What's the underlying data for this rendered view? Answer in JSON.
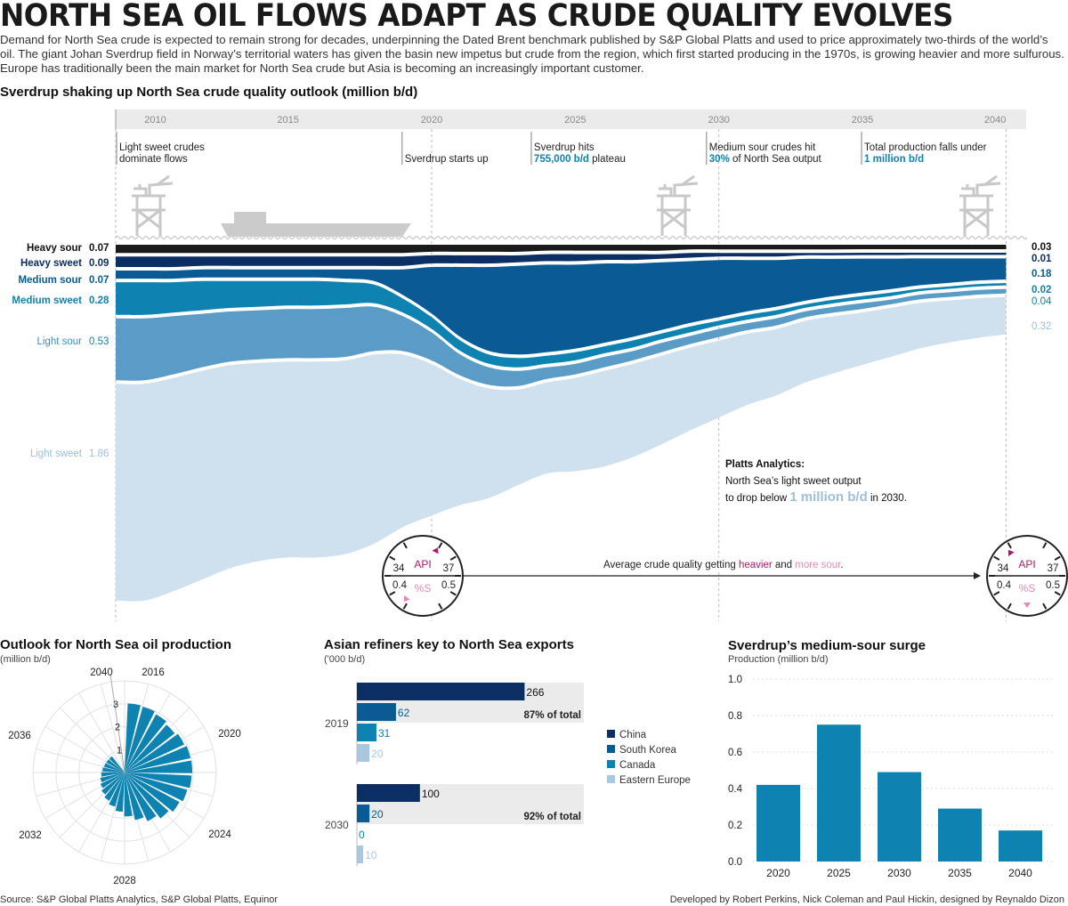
{
  "title": "NORTH SEA OIL FLOWS ADAPT AS CRUDE QUALITY EVOLVES",
  "intro": "Demand for North Sea crude is expected to remain strong for decades, underpinning the Dated Brent benchmark published by S&P Global Platts and used to price approximately two-thirds of the world’s oil. The giant Johan Sverdrup field in Norway’s territorial waters has given the basin new impetus but crude from the region, which first started producing in the 1970s, is growing heavier and more sulfurous. Europe has traditionally been the main market for North Sea crude but Asia is becoming an increasingly important customer.",
  "colors": {
    "heavy_sour": "#1a1a1a",
    "heavy_sweet": "#0b2f62",
    "medium_sour": "#0a5a94",
    "medium_sweet": "#0e82b0",
    "light_sour": "#5a9cc6",
    "light_sweet": "#cfe0ee",
    "accent_magenta": "#b0166e",
    "accent_pink": "#e58ab4",
    "highlight_blue": "#0e82b0",
    "label_light": "#9dbfd8"
  },
  "chart_data": [
    {
      "id": "sverdrup_flows",
      "type": "area",
      "title": "Sverdrup shaking up North Sea crude quality outlook (million b/d)",
      "x": [
        2009,
        2010,
        2011,
        2012,
        2013,
        2014,
        2015,
        2016,
        2017,
        2018,
        2019,
        2020,
        2021,
        2022,
        2023,
        2024,
        2025,
        2026,
        2027,
        2028,
        2029,
        2030,
        2031,
        2032,
        2033,
        2034,
        2035,
        2036,
        2037,
        2038,
        2039,
        2040
      ],
      "axis_ticks": [
        "2010",
        "2015",
        "2020",
        "2025",
        "2030",
        "2035",
        "2040"
      ],
      "xlim": [
        2009,
        2040.7
      ],
      "series": [
        {
          "name": "Light sweet",
          "key": "light_sweet",
          "start_label": "1.86",
          "end_label": "0.32",
          "values": [
            1.86,
            1.86,
            1.83,
            1.79,
            1.74,
            1.7,
            1.68,
            1.68,
            1.66,
            1.62,
            1.48,
            1.3,
            1.08,
            0.94,
            0.82,
            0.78,
            0.8,
            0.82,
            0.8,
            0.76,
            0.71,
            0.66,
            0.61,
            0.57,
            0.53,
            0.49,
            0.45,
            0.42,
            0.39,
            0.36,
            0.34,
            0.32
          ]
        },
        {
          "name": "Light sour",
          "key": "light_sour",
          "start_label": "0.53",
          "end_label": "0.04",
          "values": [
            0.53,
            0.53,
            0.5,
            0.46,
            0.43,
            0.42,
            0.42,
            0.42,
            0.42,
            0.38,
            0.3,
            0.24,
            0.18,
            0.15,
            0.13,
            0.1,
            0.09,
            0.09,
            0.08,
            0.08,
            0.07,
            0.07,
            0.06,
            0.06,
            0.05,
            0.05,
            0.05,
            0.04,
            0.04,
            0.04,
            0.04,
            0.04
          ]
        },
        {
          "name": "Medium sweet",
          "key": "medium_sweet",
          "start_label": "0.28",
          "end_label": "0.02",
          "values": [
            0.28,
            0.28,
            0.26,
            0.25,
            0.23,
            0.22,
            0.21,
            0.21,
            0.19,
            0.16,
            0.12,
            0.1,
            0.09,
            0.08,
            0.08,
            0.07,
            0.07,
            0.06,
            0.06,
            0.05,
            0.05,
            0.04,
            0.04,
            0.04,
            0.03,
            0.03,
            0.03,
            0.03,
            0.02,
            0.02,
            0.02,
            0.02
          ]
        },
        {
          "name": "Medium sour",
          "key": "medium_sour",
          "start_label": "0.07",
          "end_label": "0.18",
          "values": [
            0.07,
            0.07,
            0.07,
            0.07,
            0.07,
            0.07,
            0.07,
            0.07,
            0.08,
            0.1,
            0.22,
            0.4,
            0.6,
            0.72,
            0.76,
            0.75,
            0.72,
            0.68,
            0.63,
            0.58,
            0.53,
            0.49,
            0.44,
            0.4,
            0.36,
            0.32,
            0.29,
            0.26,
            0.23,
            0.21,
            0.19,
            0.18
          ]
        },
        {
          "name": "Heavy sweet",
          "key": "heavy_sweet",
          "start_label": "0.09",
          "end_label": "0.01",
          "values": [
            0.09,
            0.09,
            0.09,
            0.08,
            0.08,
            0.08,
            0.08,
            0.08,
            0.08,
            0.08,
            0.08,
            0.07,
            0.07,
            0.07,
            0.06,
            0.06,
            0.06,
            0.05,
            0.05,
            0.04,
            0.04,
            0.03,
            0.03,
            0.03,
            0.02,
            0.02,
            0.02,
            0.02,
            0.01,
            0.01,
            0.01,
            0.01
          ]
        },
        {
          "name": "Heavy sour",
          "key": "heavy_sour",
          "start_label": "0.07",
          "end_label": "0.03",
          "values": [
            0.07,
            0.07,
            0.07,
            0.07,
            0.07,
            0.07,
            0.07,
            0.07,
            0.07,
            0.07,
            0.07,
            0.06,
            0.06,
            0.06,
            0.06,
            0.05,
            0.05,
            0.05,
            0.05,
            0.05,
            0.04,
            0.04,
            0.04,
            0.04,
            0.04,
            0.04,
            0.03,
            0.03,
            0.03,
            0.03,
            0.03,
            0.03
          ]
        }
      ],
      "milestones": [
        {
          "year": 2010,
          "line1": "Light sweet crudes",
          "line2": "dominate flows",
          "highlight": "",
          "line2_rest": ""
        },
        {
          "year": 2019,
          "line1": "",
          "line2": "Sverdrup starts up",
          "highlight": "",
          "line2_rest": ""
        },
        {
          "year": 2023.5,
          "line1": "Sverdrup hits",
          "line2": "",
          "highlight": "755,000 b/d",
          "line2_rest": " plateau"
        },
        {
          "year": 2029.6,
          "line1": "Medium sour crudes hit",
          "line2": "",
          "highlight": "30%",
          "line2_rest": " of North Sea output"
        },
        {
          "year": 2035,
          "line1": "Total production falls under",
          "line2": "",
          "highlight": "1 million b/d",
          "line2_rest": ""
        }
      ],
      "annotation": {
        "title": "Platts Analytics:",
        "line1": "North Sea’s light sweet output",
        "line2_pre": "to drop below",
        "line2_highlight": "1 million b/d",
        "line2_post": "in 2030."
      },
      "quality": {
        "text_pre": "Average crude quality getting",
        "heavier": "heavier",
        "and": "and",
        "more_sour": "more sour",
        "period": ".",
        "api_label": "API",
        "sulfur_label": "%S",
        "api_min": "34",
        "api_max": "37",
        "s_min": "0.4",
        "s_max": "0.5",
        "start": {
          "api": 36.2,
          "sulfur": 0.42
        },
        "end": {
          "api": 34.6,
          "sulfur": 0.45
        }
      }
    },
    {
      "id": "production_outlook",
      "type": "radial-bar",
      "title": "Outlook for North Sea oil production",
      "subtitle": "(million b/d)",
      "years": [
        2016,
        2017,
        2018,
        2019,
        2020,
        2021,
        2022,
        2023,
        2024,
        2025,
        2026,
        2027,
        2028,
        2029,
        2030,
        2031,
        2032,
        2033,
        2034,
        2035,
        2036,
        2037,
        2038,
        2039,
        2040
      ],
      "values": [
        3.02,
        2.98,
        2.89,
        2.78,
        2.88,
        2.95,
        2.96,
        2.93,
        2.84,
        2.72,
        2.55,
        2.35,
        2.13,
        1.92,
        1.72,
        1.55,
        1.4,
        1.28,
        1.17,
        1.09,
        1.02,
        0.97,
        0.93,
        0.91,
        0.9
      ],
      "radial_ticks": [
        "1",
        "2",
        "3"
      ],
      "year_labels": [
        "2016",
        "2020",
        "2024",
        "2028",
        "2032",
        "2036",
        "2040"
      ],
      "rmax": 4.2
    },
    {
      "id": "asian_refiners",
      "type": "bar",
      "title": "Asian refiners key to North Sea exports",
      "subtitle": "('000 b/d)",
      "categories": [
        "China",
        "South Korea",
        "Canada",
        "Eastern Europe"
      ],
      "groups": [
        {
          "year": "2019",
          "values": [
            266,
            62,
            31,
            20
          ],
          "total_label": "87% of total"
        },
        {
          "year": "2030",
          "values": [
            100,
            20,
            0,
            10
          ],
          "total_label": "92% of total"
        }
      ],
      "xlim": [
        0,
        360
      ]
    },
    {
      "id": "sverdrup_surge",
      "type": "bar",
      "title": "Sverdrup’s medium-sour surge",
      "subtitle": "Production (million b/d)",
      "categories": [
        "2020",
        "2025",
        "2030",
        "2035",
        "2040"
      ],
      "values": [
        0.42,
        0.75,
        0.49,
        0.29,
        0.17
      ],
      "ylim": [
        0,
        1.0
      ],
      "yticks": [
        "0.0",
        "0.2",
        "0.4",
        "0.6",
        "0.8",
        "1.0"
      ]
    }
  ],
  "footer": {
    "source": "Source: S&P Global Platts Analytics, S&P Global Platts, Equinor",
    "credits": "Developed by Robert Perkins, Nick Coleman and Paul Hickin, designed by Reynaldo Dizon"
  }
}
